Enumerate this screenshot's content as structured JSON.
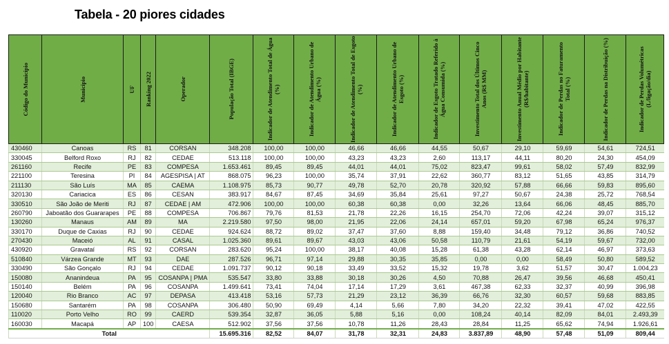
{
  "title": "Tabela - 20 piores cidades",
  "colors": {
    "header": "#70AD47",
    "row_alt": "#E2EFDA"
  },
  "columns": [
    "Código do Município",
    "Município",
    "UF",
    "Ranking 2022",
    "Operador",
    "População Total (IBGE)",
    "Indicador de Atendimento Total de Água (%)",
    "Indicador de Atendimento Urbano de Água (%)",
    "Indicador de Atendimento Total de Esgoto (%)",
    "Indicador de Atendimento Urbano de Esgoto (%)",
    "Indicador de Esgoto Tratado Referido à Água Consumida (%)",
    "Investimento Total dos Últimos Cinco Anos (R$ MM)",
    "Investimento Anual Médio por Habitante (R$/habitante)",
    "Indicador de Perdas no Faturamento Total (%)",
    "Indicador de Perdas na Distribuição (%)",
    "Indicador de Perdas Volumétricas (L/ligação/dia)"
  ],
  "rows": [
    [
      "430460",
      "Canoas",
      "RS",
      "81",
      "CORSAN",
      "348.208",
      "100,00",
      "100,00",
      "46,66",
      "46,66",
      "44,55",
      "50,67",
      "29,10",
      "59,69",
      "54,61",
      "724,51"
    ],
    [
      "330045",
      "Belford Roxo",
      "RJ",
      "82",
      "CEDAE",
      "513.118",
      "100,00",
      "100,00",
      "43,23",
      "43,23",
      "2,60",
      "113,17",
      "44,11",
      "80,20",
      "24,30",
      "454,09"
    ],
    [
      "261160",
      "Recife",
      "PE",
      "83",
      "COMPESA",
      "1.653.461",
      "89,45",
      "89,45",
      "44,01",
      "44,01",
      "75,02",
      "823,47",
      "99,61",
      "58,02",
      "57,49",
      "832,99"
    ],
    [
      "221100",
      "Teresina",
      "PI",
      "84",
      "AGESPISA | AT",
      "868.075",
      "96,23",
      "100,00",
      "35,74",
      "37,91",
      "22,62",
      "360,77",
      "83,12",
      "51,65",
      "43,85",
      "314,79"
    ],
    [
      "211130",
      "São Luís",
      "MA",
      "85",
      "CAEMA",
      "1.108.975",
      "85,73",
      "90,77",
      "49,78",
      "52,70",
      "20,78",
      "320,92",
      "57,88",
      "66,66",
      "59,83",
      "895,60"
    ],
    [
      "320130",
      "Cariacica",
      "ES",
      "86",
      "CESAN",
      "383.917",
      "84,67",
      "87,45",
      "34,69",
      "35,84",
      "25,61",
      "97,27",
      "50,67",
      "24,38",
      "25,72",
      "768,54"
    ],
    [
      "330510",
      "São João de Meriti",
      "RJ",
      "87",
      "CEDAE | AM",
      "472.906",
      "100,00",
      "100,00",
      "60,38",
      "60,38",
      "0,00",
      "32,26",
      "13,64",
      "66,06",
      "48,45",
      "885,70"
    ],
    [
      "260790",
      "Jaboatão dos Guararapes",
      "PE",
      "88",
      "COMPESA",
      "706.867",
      "79,76",
      "81,53",
      "21,78",
      "22,26",
      "16,15",
      "254,70",
      "72,06",
      "42,24",
      "39,07",
      "315,12"
    ],
    [
      "130260",
      "Manaus",
      "AM",
      "89",
      "MA",
      "2.219.580",
      "97,50",
      "98,00",
      "21,95",
      "22,06",
      "24,14",
      "657,01",
      "59,20",
      "67,98",
      "65,24",
      "976,37"
    ],
    [
      "330170",
      "Duque de Caxias",
      "RJ",
      "90",
      "CEDAE",
      "924.624",
      "88,72",
      "89,02",
      "37,47",
      "37,60",
      "8,88",
      "159,40",
      "34,48",
      "79,12",
      "36,86",
      "740,52"
    ],
    [
      "270430",
      "Maceió",
      "AL",
      "91",
      "CASAL",
      "1.025.360",
      "89,61",
      "89,67",
      "43,03",
      "43,06",
      "50,58",
      "110,79",
      "21,61",
      "54,19",
      "59,67",
      "732,00"
    ],
    [
      "430920",
      "Gravataí",
      "RS",
      "92",
      "CORSAN",
      "283.620",
      "95,24",
      "100,00",
      "38,17",
      "40,08",
      "15,28",
      "61,38",
      "43,28",
      "62,14",
      "46,97",
      "373,63"
    ],
    [
      "510840",
      "Várzea Grande",
      "MT",
      "93",
      "DAE",
      "287.526",
      "96,71",
      "97,14",
      "29,88",
      "30,35",
      "35,85",
      "0,00",
      "0,00",
      "58,49",
      "50,80",
      "589,52"
    ],
    [
      "330490",
      "São Gonçalo",
      "RJ",
      "94",
      "CEDAE",
      "1.091.737",
      "90,12",
      "90,18",
      "33,49",
      "33,52",
      "15,32",
      "19,78",
      "3,62",
      "51,57",
      "30,47",
      "1.004,23"
    ],
    [
      "150080",
      "Ananindeua",
      "PA",
      "95",
      "COSANPA | PMA",
      "535.547",
      "33,80",
      "33,88",
      "30,18",
      "30,26",
      "4,50",
      "70,88",
      "26,47",
      "39,56",
      "46,68",
      "450,41"
    ],
    [
      "150140",
      "Belém",
      "PA",
      "96",
      "COSANPA",
      "1.499.641",
      "73,41",
      "74,04",
      "17,14",
      "17,29",
      "3,61",
      "467,38",
      "62,33",
      "32,37",
      "40,99",
      "396,98"
    ],
    [
      "120040",
      "Rio Branco",
      "AC",
      "97",
      "DEPASA",
      "413.418",
      "53,16",
      "57,73",
      "21,29",
      "23,12",
      "36,39",
      "66,76",
      "32,30",
      "60,57",
      "59,68",
      "883,85"
    ],
    [
      "150680",
      "Santarém",
      "PA",
      "98",
      "COSANPA",
      "306.480",
      "50,90",
      "69,49",
      "4,14",
      "5,66",
      "7,80",
      "34,20",
      "22,32",
      "39,41",
      "47,02",
      "422,55"
    ],
    [
      "110020",
      "Porto Velho",
      "RO",
      "99",
      "CAERD",
      "539.354",
      "32,87",
      "36,05",
      "5,88",
      "5,16",
      "0,00",
      "108,24",
      "40,14",
      "82,09",
      "84,01",
      "2.493,39"
    ],
    [
      "160030",
      "Macapá",
      "AP",
      "100",
      "CAESA",
      "512.902",
      "37,56",
      "37,56",
      "10,78",
      "11,26",
      "28,43",
      "28,84",
      "11,25",
      "65,62",
      "74,94",
      "1.926,61"
    ]
  ],
  "total": {
    "label": "Total",
    "values": [
      "15.695.316",
      "82,52",
      "84,07",
      "31,78",
      "32,31",
      "24,83",
      "3.837,89",
      "48,90",
      "57,48",
      "51,09",
      "809,44"
    ]
  }
}
